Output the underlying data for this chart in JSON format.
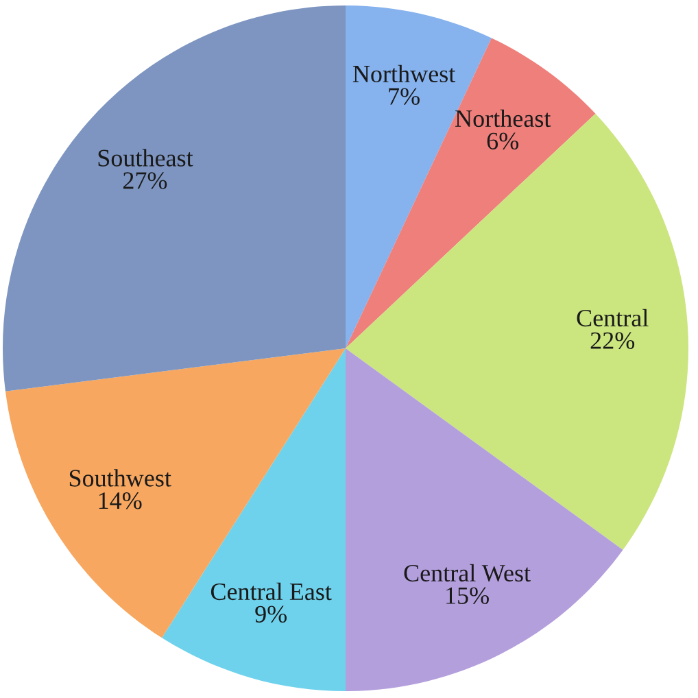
{
  "chart_data": {
    "type": "pie",
    "categories": [
      "Northwest",
      "Northeast",
      "Central",
      "Central West",
      "Central East",
      "Southwest",
      "Southeast"
    ],
    "values": [
      7,
      6,
      22,
      15,
      9,
      14,
      27
    ],
    "value_labels": [
      "7%",
      "6%",
      "22%",
      "15%",
      "9%",
      "14%",
      "27%"
    ],
    "colors": [
      "#86b2ee",
      "#ef7f7b",
      "#cbe57f",
      "#b49fdd",
      "#6fd2ec",
      "#f7a75f",
      "#7d95c0"
    ],
    "legend": false
  }
}
